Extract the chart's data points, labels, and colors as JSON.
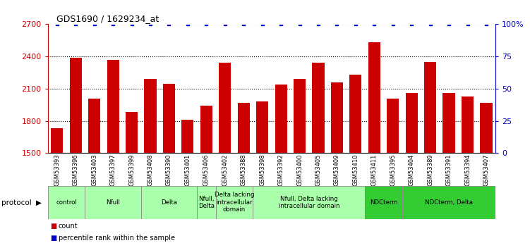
{
  "title": "GDS1690 / 1629234_at",
  "samples": [
    "GSM53393",
    "GSM53396",
    "GSM53403",
    "GSM53397",
    "GSM53399",
    "GSM53408",
    "GSM53390",
    "GSM53401",
    "GSM53406",
    "GSM53402",
    "GSM53388",
    "GSM53398",
    "GSM53392",
    "GSM53400",
    "GSM53405",
    "GSM53409",
    "GSM53410",
    "GSM53411",
    "GSM53395",
    "GSM53404",
    "GSM53389",
    "GSM53391",
    "GSM53394",
    "GSM53407"
  ],
  "counts": [
    1730,
    2390,
    2010,
    2370,
    1880,
    2190,
    2145,
    1810,
    1940,
    2340,
    1970,
    1980,
    2140,
    2190,
    2340,
    2160,
    2230,
    2530,
    2010,
    2060,
    2350,
    2060,
    2030,
    1970
  ],
  "percentile": [
    100,
    100,
    100,
    100,
    100,
    100,
    100,
    100,
    100,
    100,
    100,
    100,
    100,
    100,
    100,
    100,
    100,
    100,
    100,
    100,
    100,
    100,
    100,
    100
  ],
  "ylim_left": [
    1500,
    2700
  ],
  "yticks_left": [
    1500,
    1800,
    2100,
    2400,
    2700
  ],
  "ytick_labels_right": [
    "0",
    "25",
    "50",
    "75",
    "100%"
  ],
  "yticks_right_vals": [
    0,
    25,
    50,
    75,
    100
  ],
  "bar_color": "#cc0000",
  "percentile_color": "#0000cc",
  "dot_size": 4,
  "groups": [
    {
      "label": "control",
      "start": 0,
      "end": 2,
      "color": "#aaffaa"
    },
    {
      "label": "Nfull",
      "start": 2,
      "end": 5,
      "color": "#aaffaa"
    },
    {
      "label": "Delta",
      "start": 5,
      "end": 8,
      "color": "#aaffaa"
    },
    {
      "label": "Nfull,\nDelta",
      "start": 8,
      "end": 9,
      "color": "#aaffaa"
    },
    {
      "label": "Delta lacking\nintracellular\ndomain",
      "start": 9,
      "end": 11,
      "color": "#aaffaa"
    },
    {
      "label": "Nfull, Delta lacking\nintracellular domain",
      "start": 11,
      "end": 17,
      "color": "#aaffaa"
    },
    {
      "label": "NDCterm",
      "start": 17,
      "end": 19,
      "color": "#33cc33"
    },
    {
      "label": "NDCterm, Delta",
      "start": 19,
      "end": 24,
      "color": "#33cc33"
    }
  ],
  "bg_color": "#ffffff",
  "protocol_label": "protocol"
}
